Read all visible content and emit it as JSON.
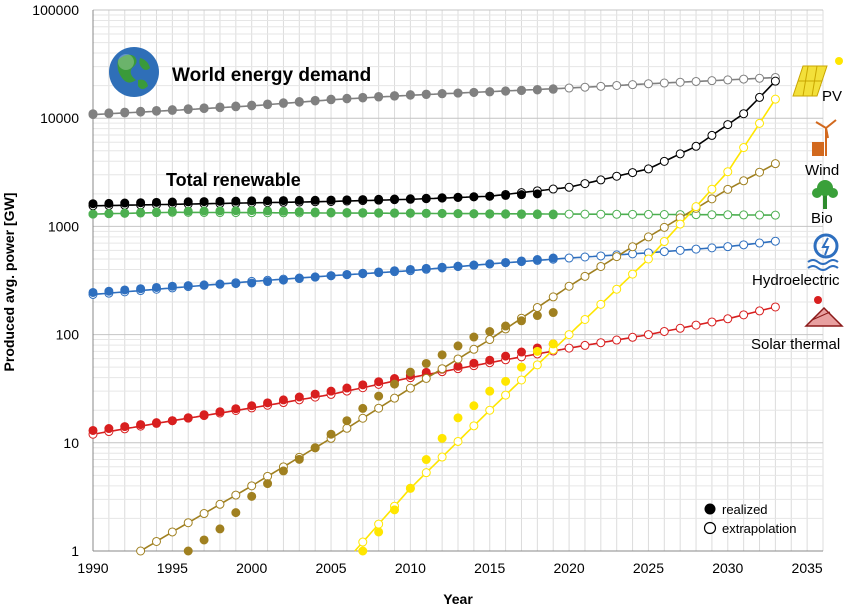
{
  "chart_data": {
    "type": "line",
    "xlabel": "Year",
    "ylabel": "Produced avg. power [GW]",
    "xlim": [
      1990,
      2036
    ],
    "ylim": [
      1,
      100000
    ],
    "yscale": "log",
    "grid": true,
    "x_ticks": [
      "1990",
      "1995",
      "2000",
      "2005",
      "2010",
      "2015",
      "2020",
      "2025",
      "2030",
      "2035"
    ],
    "y_ticks": [
      "1",
      "10",
      "100",
      "1000",
      "10000",
      "100000"
    ],
    "legend": {
      "position": "bottom-right",
      "realized": "realized",
      "extrapolation": "extrapolation"
    },
    "series": [
      {
        "name": "World energy demand",
        "label": "World energy demand",
        "color": "#808080",
        "realized": {
          "x": [
            1990,
            1995,
            2000,
            2005,
            2010,
            2015,
            2019
          ],
          "y": [
            11000,
            12000,
            13200,
            15000,
            16500,
            17500,
            18500
          ]
        },
        "extrapolation": {
          "x": [
            1990,
            1995,
            2000,
            2005,
            2010,
            2015,
            2020,
            2025,
            2030,
            2033
          ],
          "y": [
            10800,
            11800,
            13000,
            14800,
            16300,
            17600,
            19000,
            20800,
            22600,
            23800
          ]
        }
      },
      {
        "name": "Total renewable",
        "label": "Total renewable",
        "color": "#000000",
        "realized": {
          "x": [
            1990,
            1995,
            2000,
            2005,
            2010,
            2015,
            2018
          ],
          "y": [
            1620,
            1680,
            1720,
            1750,
            1800,
            1900,
            2000
          ]
        },
        "extrapolation": {
          "x": [
            1990,
            1995,
            2000,
            2005,
            2010,
            2015,
            2020,
            2025,
            2028,
            2031,
            2033
          ],
          "y": [
            1550,
            1600,
            1650,
            1700,
            1780,
            1900,
            2300,
            3400,
            5500,
            11000,
            22000
          ]
        }
      },
      {
        "name": "Bio",
        "label": "Bio",
        "color": "#4caf50",
        "realized": {
          "x": [
            1990,
            1995,
            2000,
            2005,
            2010,
            2015,
            2019
          ],
          "y": [
            1300,
            1380,
            1400,
            1350,
            1330,
            1300,
            1280
          ]
        },
        "extrapolation": {
          "x": [
            1990,
            1995,
            2000,
            2005,
            2010,
            2015,
            2020,
            2025,
            2030,
            2033
          ],
          "y": [
            1300,
            1350,
            1340,
            1330,
            1320,
            1310,
            1300,
            1290,
            1280,
            1270
          ]
        }
      },
      {
        "name": "Hydroelectric",
        "label": "Hydroelectric",
        "color": "#2e6fbf",
        "realized": {
          "x": [
            1990,
            1995,
            2000,
            2005,
            2010,
            2015,
            2019
          ],
          "y": [
            245,
            280,
            300,
            350,
            400,
            450,
            510
          ]
        },
        "extrapolation": {
          "x": [
            1990,
            1995,
            2000,
            2005,
            2010,
            2015,
            2020,
            2025,
            2030,
            2033
          ],
          "y": [
            235,
            270,
            310,
            350,
            390,
            450,
            510,
            570,
            650,
            730
          ]
        }
      },
      {
        "name": "Solar thermal",
        "label": "Solar thermal",
        "color": "#d81f1f",
        "realized": {
          "x": [
            1990,
            1995,
            2000,
            2005,
            2010,
            2015,
            2019
          ],
          "y": [
            13,
            16,
            22,
            30,
            42,
            58,
            82
          ]
        },
        "extrapolation": {
          "x": [
            1990,
            1995,
            2000,
            2005,
            2010,
            2015,
            2020,
            2025,
            2030,
            2033
          ],
          "y": [
            12,
            16,
            21,
            28,
            40,
            55,
            75,
            100,
            140,
            180
          ]
        }
      },
      {
        "name": "Wind",
        "label": "Wind",
        "color": "#a08020",
        "realized": {
          "x": [
            1996,
            1998,
            2000,
            2002,
            2004,
            2006,
            2008,
            2010,
            2012,
            2014,
            2016,
            2018,
            2019
          ],
          "y": [
            1,
            1.6,
            3.2,
            5.5,
            9,
            16,
            27,
            45,
            65,
            95,
            120,
            150,
            160
          ]
        },
        "extrapolation": {
          "x": [
            1993,
            1995,
            2000,
            2005,
            2010,
            2015,
            2020,
            2025,
            2030,
            2033
          ],
          "y": [
            1,
            1.5,
            4,
            11,
            32,
            90,
            280,
            800,
            2200,
            3800
          ]
        }
      },
      {
        "name": "PV",
        "label": "PV",
        "color": "#ffe600",
        "realized": {
          "x": [
            2007,
            2008,
            2009,
            2010,
            2011,
            2012,
            2013,
            2014,
            2015,
            2016,
            2017,
            2018,
            2019
          ],
          "y": [
            1,
            1.5,
            2.4,
            3.8,
            7,
            11,
            17,
            22,
            30,
            37,
            50,
            70,
            82
          ]
        },
        "extrapolation": {
          "x": [
            2006.5,
            2010,
            2015,
            2020,
            2025,
            2030,
            2033
          ],
          "y": [
            1,
            3.8,
            20,
            100,
            500,
            3200,
            15000
          ]
        }
      }
    ],
    "annotations": [
      "World energy demand",
      "Total renewable",
      "PV",
      "Wind",
      "Bio",
      "Hydroelectric",
      "Solar thermal"
    ]
  },
  "icons": {
    "globe": "globe-icon",
    "pv": "solar-panel-icon",
    "wind": "wind-turbine-icon",
    "bio": "tree-icon",
    "hydro": "hydro-turbine-icon",
    "solar_thermal": "solar-thermal-collector-icon"
  }
}
